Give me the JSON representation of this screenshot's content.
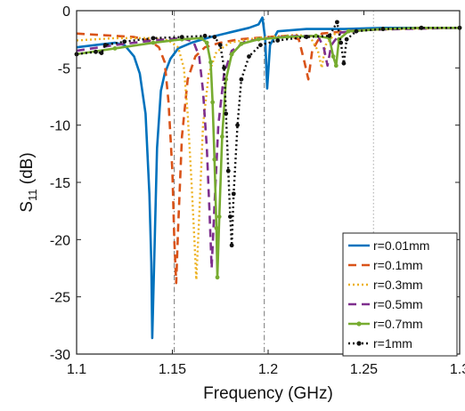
{
  "chart_data": {
    "type": "line",
    "title": "",
    "xlabel": "Frequency (GHz)",
    "ylabel_main": "S",
    "ylabel_sub": "11",
    "ylabel_unit": " (dB)",
    "xlim": [
      1.1,
      1.3
    ],
    "ylim": [
      -30,
      0
    ],
    "x_ticks": [
      1.1,
      1.15,
      1.2,
      1.25,
      1.3
    ],
    "x_tick_labels": [
      "1.1",
      "1.15",
      "1.2",
      "1.25",
      "1.3"
    ],
    "y_ticks": [
      0,
      -5,
      -10,
      -15,
      -20,
      -25,
      -30
    ],
    "y_tick_labels": [
      "0",
      "-5",
      "-10",
      "-15",
      "-20",
      "-25",
      "-30"
    ],
    "grid": false,
    "legend_position": "bottom-right",
    "reference_lines": [
      {
        "x": 1.151,
        "color": "#777777",
        "style": "dashdot"
      },
      {
        "x": 1.198,
        "color": "#777777",
        "style": "dashdot"
      },
      {
        "x": 1.255,
        "color": "#aaaaaa",
        "style": "dotted"
      }
    ],
    "series": [
      {
        "name": "r=0.01mm",
        "color": "#0072BD",
        "style": "solid",
        "points": [
          [
            1.1,
            -3.2
          ],
          [
            1.11,
            -3.0
          ],
          [
            1.12,
            -2.8
          ],
          [
            1.125,
            -3.0
          ],
          [
            1.13,
            -4.0
          ],
          [
            1.133,
            -5.5
          ],
          [
            1.136,
            -9
          ],
          [
            1.138,
            -16
          ],
          [
            1.139,
            -22
          ],
          [
            1.1395,
            -28.6
          ],
          [
            1.1405,
            -22
          ],
          [
            1.142,
            -12
          ],
          [
            1.144,
            -7
          ],
          [
            1.146,
            -5.5
          ],
          [
            1.149,
            -4.2
          ],
          [
            1.153,
            -3.3
          ],
          [
            1.16,
            -2.8
          ],
          [
            1.17,
            -2.3
          ],
          [
            1.18,
            -1.9
          ],
          [
            1.19,
            -1.5
          ],
          [
            1.195,
            -1.2
          ],
          [
            1.197,
            -0.6
          ],
          [
            1.1985,
            -2.5
          ],
          [
            1.1995,
            -6.8
          ],
          [
            1.201,
            -3.0
          ],
          [
            1.205,
            -1.8
          ],
          [
            1.22,
            -1.6
          ],
          [
            1.24,
            -1.6
          ],
          [
            1.26,
            -1.5
          ],
          [
            1.28,
            -1.5
          ],
          [
            1.3,
            -1.5
          ]
        ]
      },
      {
        "name": "r=0.1mm",
        "color": "#D95319",
        "style": "dashed",
        "points": [
          [
            1.1,
            -2.0
          ],
          [
            1.12,
            -2.2
          ],
          [
            1.13,
            -2.3
          ],
          [
            1.138,
            -2.6
          ],
          [
            1.143,
            -3.2
          ],
          [
            1.146,
            -4.5
          ],
          [
            1.148,
            -8
          ],
          [
            1.15,
            -14
          ],
          [
            1.151,
            -20
          ],
          [
            1.152,
            -23.8
          ],
          [
            1.153,
            -19
          ],
          [
            1.155,
            -11
          ],
          [
            1.158,
            -6
          ],
          [
            1.162,
            -4
          ],
          [
            1.167,
            -3.2
          ],
          [
            1.175,
            -2.8
          ],
          [
            1.185,
            -2.5
          ],
          [
            1.2,
            -2.3
          ],
          [
            1.21,
            -2.2
          ],
          [
            1.216,
            -2.5
          ],
          [
            1.219,
            -4.5
          ],
          [
            1.221,
            -6.0
          ],
          [
            1.223,
            -3.5
          ],
          [
            1.228,
            -2.0
          ],
          [
            1.24,
            -1.8
          ],
          [
            1.26,
            -1.6
          ],
          [
            1.28,
            -1.5
          ],
          [
            1.3,
            -1.5
          ]
        ]
      },
      {
        "name": "r=0.3mm",
        "color": "#EDB120",
        "style": "dotted",
        "points": [
          [
            1.1,
            -2.6
          ],
          [
            1.12,
            -2.4
          ],
          [
            1.14,
            -2.4
          ],
          [
            1.148,
            -2.6
          ],
          [
            1.153,
            -3.2
          ],
          [
            1.156,
            -5
          ],
          [
            1.158,
            -9
          ],
          [
            1.16,
            -15
          ],
          [
            1.1615,
            -20
          ],
          [
            1.1625,
            -23.5
          ],
          [
            1.164,
            -18
          ],
          [
            1.166,
            -10
          ],
          [
            1.169,
            -5.5
          ],
          [
            1.173,
            -3.6
          ],
          [
            1.18,
            -2.8
          ],
          [
            1.19,
            -2.5
          ],
          [
            1.2,
            -2.3
          ],
          [
            1.215,
            -2.1
          ],
          [
            1.222,
            -2.3
          ],
          [
            1.226,
            -3.5
          ],
          [
            1.228,
            -5.0
          ],
          [
            1.23,
            -3.0
          ],
          [
            1.235,
            -2.0
          ],
          [
            1.25,
            -1.7
          ],
          [
            1.27,
            -1.6
          ],
          [
            1.3,
            -1.5
          ]
        ]
      },
      {
        "name": "r=0.5mm",
        "color": "#7E2F8E",
        "style": "dashed",
        "points": [
          [
            1.1,
            -3.5
          ],
          [
            1.12,
            -3.0
          ],
          [
            1.14,
            -2.6
          ],
          [
            1.155,
            -2.4
          ],
          [
            1.161,
            -2.7
          ],
          [
            1.164,
            -4
          ],
          [
            1.166,
            -7
          ],
          [
            1.168,
            -12
          ],
          [
            1.1695,
            -18
          ],
          [
            1.1705,
            -22.5
          ],
          [
            1.172,
            -17
          ],
          [
            1.174,
            -10
          ],
          [
            1.177,
            -5.5
          ],
          [
            1.181,
            -3.5
          ],
          [
            1.188,
            -2.7
          ],
          [
            1.2,
            -2.4
          ],
          [
            1.215,
            -2.2
          ],
          [
            1.226,
            -2.2
          ],
          [
            1.229,
            -3.2
          ],
          [
            1.231,
            -4.8
          ],
          [
            1.233,
            -3.0
          ],
          [
            1.238,
            -1.9
          ],
          [
            1.25,
            -1.7
          ],
          [
            1.27,
            -1.6
          ],
          [
            1.3,
            -1.5
          ]
        ]
      },
      {
        "name": "r=0.7mm",
        "color": "#77AC30",
        "style": "solid-marker",
        "points": [
          [
            1.1,
            -3.8
          ],
          [
            1.12,
            -3.3
          ],
          [
            1.14,
            -2.8
          ],
          [
            1.155,
            -2.5
          ],
          [
            1.165,
            -2.4
          ],
          [
            1.168,
            -2.8
          ],
          [
            1.17,
            -4.5
          ],
          [
            1.171,
            -8
          ],
          [
            1.172,
            -13
          ],
          [
            1.173,
            -19
          ],
          [
            1.1735,
            -23.3
          ],
          [
            1.1745,
            -18
          ],
          [
            1.176,
            -11
          ],
          [
            1.178,
            -6
          ],
          [
            1.181,
            -3.8
          ],
          [
            1.186,
            -2.9
          ],
          [
            1.195,
            -2.5
          ],
          [
            1.21,
            -2.3
          ],
          [
            1.225,
            -2.2
          ],
          [
            1.232,
            -2.4
          ],
          [
            1.234,
            -4.0
          ],
          [
            1.2355,
            -4.8
          ],
          [
            1.237,
            -2.5
          ],
          [
            1.242,
            -1.8
          ],
          [
            1.26,
            -1.6
          ],
          [
            1.28,
            -1.5
          ],
          [
            1.3,
            -1.5
          ]
        ]
      },
      {
        "name": "r=1mm",
        "color": "#111111",
        "style": "dotted-marker",
        "points": [
          [
            1.1,
            -3.8
          ],
          [
            1.11,
            -3.6
          ],
          [
            1.113,
            -3.7
          ],
          [
            1.115,
            -3.0
          ],
          [
            1.125,
            -2.7
          ],
          [
            1.14,
            -2.4
          ],
          [
            1.155,
            -2.3
          ],
          [
            1.167,
            -2.2
          ],
          [
            1.172,
            -2.3
          ],
          [
            1.175,
            -3.0
          ],
          [
            1.177,
            -5
          ],
          [
            1.178,
            -9
          ],
          [
            1.1792,
            -14
          ],
          [
            1.1802,
            -18
          ],
          [
            1.181,
            -20.5
          ],
          [
            1.182,
            -16
          ],
          [
            1.184,
            -10
          ],
          [
            1.186,
            -6
          ],
          [
            1.19,
            -4
          ],
          [
            1.196,
            -3.0
          ],
          [
            1.205,
            -2.6
          ],
          [
            1.22,
            -2.3
          ],
          [
            1.232,
            -2.2
          ],
          [
            1.236,
            -1.0
          ],
          [
            1.238,
            -2.8
          ],
          [
            1.2395,
            -4.6
          ],
          [
            1.241,
            -2.5
          ],
          [
            1.246,
            -1.8
          ],
          [
            1.26,
            -1.6
          ],
          [
            1.28,
            -1.5
          ],
          [
            1.3,
            -1.5
          ]
        ]
      }
    ]
  }
}
